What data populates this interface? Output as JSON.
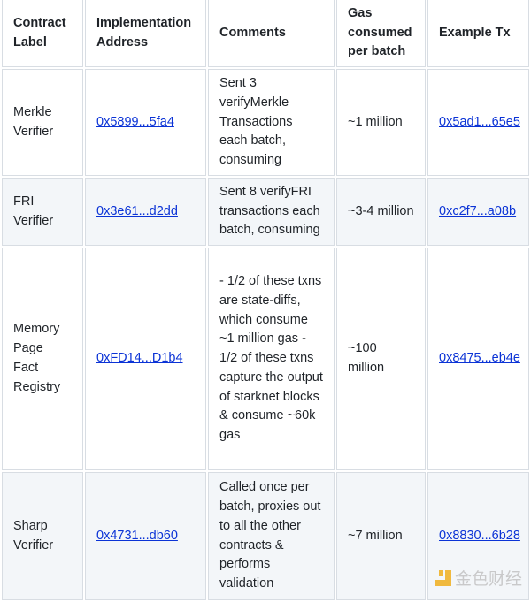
{
  "headers": [
    "Contract Label",
    "Implementation Address",
    "Comments",
    "Gas consumed per batch",
    "Example Tx"
  ],
  "rows": [
    {
      "label": "Merkle Verifier",
      "address": "0x5899...5fa4",
      "comment": "Sent 3 verifyMerkle Transactions each batch, consuming",
      "gas": "~1 million",
      "tx": "0x5ad1...65e5"
    },
    {
      "label": "FRI Verifier",
      "address": "0x3e61...d2dd",
      "comment": "Sent 8 verifyFRI transactions each batch, consuming",
      "gas": "~3-4 million",
      "tx": "0xc2f7...a08b"
    },
    {
      "label": "Memory Page Fact Registry",
      "address": "0xFD14...D1b4",
      "comment": "- 1/2 of these txns are state-diffs, which consume ~1 million gas - 1/2 of these txns capture the output of starknet blocks & consume ~60k gas",
      "gas": "~100 million",
      "tx": "0x8475...eb4e"
    },
    {
      "label": "Sharp Verifier",
      "address": "0x4731...db60",
      "comment": "Called once per batch, proxies out to all the other contracts & performs validation",
      "gas": "~7 million",
      "tx": "0x8830...6b28"
    }
  ],
  "watermark": {
    "text": "金色财经",
    "color": "#f0a500"
  }
}
